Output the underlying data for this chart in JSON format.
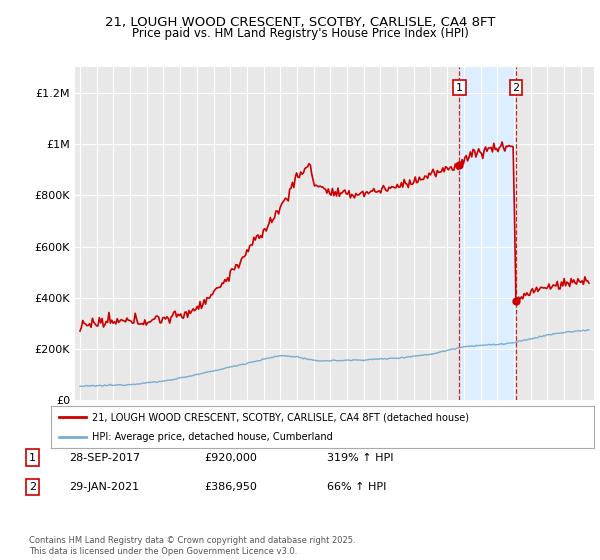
{
  "title": "21, LOUGH WOOD CRESCENT, SCOTBY, CARLISLE, CA4 8FT",
  "subtitle": "Price paid vs. HM Land Registry's House Price Index (HPI)",
  "ylim": [
    0,
    1300000
  ],
  "yticks": [
    0,
    200000,
    400000,
    600000,
    800000,
    1000000,
    1200000
  ],
  "ytick_labels": [
    "£0",
    "£200K",
    "£400K",
    "£600K",
    "£800K",
    "£1M",
    "£1.2M"
  ],
  "background_color": "#ffffff",
  "plot_bg_color": "#e8e8e8",
  "grid_color": "#ffffff",
  "line1_color": "#cc0000",
  "line2_color": "#7aadcf",
  "shade_color": "#dceeff",
  "ann1_year": 2017.75,
  "ann2_year": 2021.08,
  "ann1_price": 920000,
  "ann2_price": 386950,
  "legend_label1": "21, LOUGH WOOD CRESCENT, SCOTBY, CARLISLE, CA4 8FT (detached house)",
  "legend_label2": "HPI: Average price, detached house, Cumberland",
  "note1_num": "1",
  "note1_date": "28-SEP-2017",
  "note1_price": "£920,000",
  "note1_hpi": "319% ↑ HPI",
  "note2_num": "2",
  "note2_date": "29-JAN-2021",
  "note2_price": "£386,950",
  "note2_hpi": "66% ↑ HPI",
  "footer": "Contains HM Land Registry data © Crown copyright and database right 2025.\nThis data is licensed under the Open Government Licence v3.0."
}
